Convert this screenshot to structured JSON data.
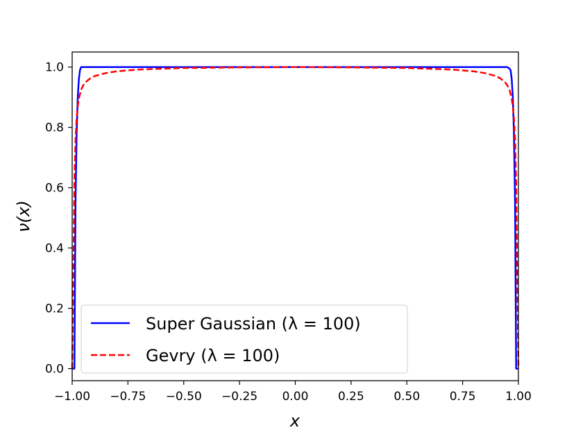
{
  "chart_data": {
    "type": "line",
    "title": "",
    "xlabel": "x",
    "ylabel": "ν(x)",
    "xlim": [
      -1.0,
      1.0
    ],
    "ylim": [
      -0.04,
      1.05
    ],
    "grid": false,
    "legend_position": "lower-left",
    "x_ticks": [
      "−1.00",
      "−0.75",
      "−0.50",
      "−0.25",
      "0.00",
      "0.25",
      "0.50",
      "0.75",
      "1.00"
    ],
    "y_ticks": [
      "0.0",
      "0.2",
      "0.4",
      "0.6",
      "0.8",
      "1.0"
    ],
    "series": [
      {
        "name": "Super Gaussian (λ = 100)",
        "color": "#0000ff",
        "dash": "solid",
        "x": [
          -1.0,
          -0.99,
          -0.985,
          -0.98,
          -0.975,
          -0.97,
          -0.965,
          -0.96,
          -0.95,
          -0.9,
          -0.5,
          0.0,
          0.5,
          0.9,
          0.95,
          0.96,
          0.965,
          0.97,
          0.975,
          0.98,
          0.985,
          0.99,
          1.0
        ],
        "y": [
          0.0,
          0.0,
          0.55,
          0.78,
          0.9,
          0.96,
          0.99,
          1.0,
          1.0,
          1.0,
          1.0,
          1.0,
          1.0,
          1.0,
          1.0,
          0.995,
          0.99,
          0.96,
          0.9,
          0.78,
          0.55,
          0.0,
          0.0
        ]
      },
      {
        "name": "Gevry (λ = 100)",
        "color": "#ff0000",
        "dash": "dashed",
        "x": [
          -1.0,
          -0.995,
          -0.99,
          -0.985,
          -0.98,
          -0.975,
          -0.97,
          -0.965,
          -0.96,
          -0.95,
          -0.94,
          -0.92,
          -0.9,
          -0.85,
          -0.8,
          -0.7,
          -0.5,
          -0.25,
          0.0,
          0.25,
          0.5,
          0.7,
          0.8,
          0.85,
          0.9,
          0.92,
          0.94,
          0.95,
          0.96,
          0.965,
          0.97,
          0.975,
          0.98,
          0.985,
          0.99,
          0.995,
          1.0
        ],
        "y": [
          0.0,
          0.3,
          0.62,
          0.76,
          0.83,
          0.87,
          0.895,
          0.91,
          0.925,
          0.94,
          0.95,
          0.962,
          0.97,
          0.98,
          0.986,
          0.992,
          0.997,
          0.999,
          1.0,
          0.999,
          0.997,
          0.992,
          0.986,
          0.98,
          0.97,
          0.962,
          0.95,
          0.94,
          0.925,
          0.91,
          0.895,
          0.87,
          0.83,
          0.76,
          0.62,
          0.3,
          0.0
        ]
      }
    ]
  }
}
